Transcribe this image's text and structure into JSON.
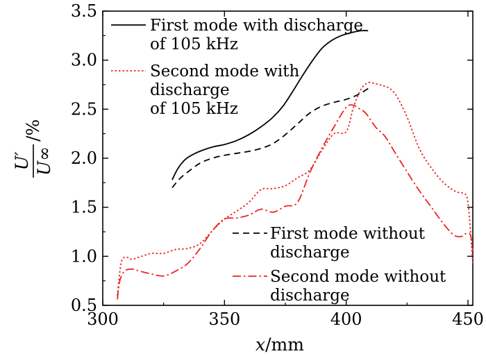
{
  "chart_data": {
    "type": "line",
    "xlabel": {
      "var": "x",
      "unit": "/mm"
    },
    "ylabel": {
      "numerator": "U′",
      "denominator": "U∞",
      "unit": "/%"
    },
    "xlim": [
      300,
      452
    ],
    "ylim": [
      0.5,
      3.5
    ],
    "x_ticks": [
      "300",
      "350",
      "400",
      "450"
    ],
    "y_ticks": [
      "0.5",
      "1.0",
      "1.5",
      "2.0",
      "2.5",
      "3.0",
      "3.5"
    ],
    "grid": false,
    "series": [
      {
        "name": "First mode with discharge of 105 kHz",
        "legend_lines": [
          "First mode with discharge",
          "of 105 kHz"
        ],
        "color": "#000000",
        "style": "solid",
        "x": [
          328.5,
          331,
          334,
          338,
          342,
          346,
          350,
          355,
          360,
          365,
          370,
          374,
          378,
          382,
          386,
          390,
          394,
          398,
          402,
          406,
          409
        ],
        "y": [
          1.78,
          1.9,
          1.99,
          2.05,
          2.09,
          2.12,
          2.14,
          2.18,
          2.24,
          2.32,
          2.42,
          2.53,
          2.68,
          2.84,
          2.99,
          3.12,
          3.2,
          3.25,
          3.28,
          3.3,
          3.3
        ]
      },
      {
        "name": "Second mode with discharge of 105 kHz",
        "legend_lines": [
          "Second mode with",
          "discharge",
          "of 105 kHz"
        ],
        "color": "#ee2222",
        "style": "dotted",
        "x": [
          306,
          307,
          308,
          310,
          312,
          316,
          320,
          325,
          330,
          335,
          340,
          345,
          350,
          355,
          360,
          365,
          370,
          375,
          380,
          385,
          390,
          395,
          400,
          403,
          406,
          409,
          412,
          415,
          418,
          421,
          425,
          430,
          435,
          440,
          445,
          448,
          450,
          452
        ],
        "y": [
          0.6,
          0.84,
          0.97,
          0.99,
          0.97,
          1.0,
          1.03,
          1.03,
          1.07,
          1.08,
          1.13,
          1.26,
          1.38,
          1.46,
          1.55,
          1.68,
          1.69,
          1.72,
          1.8,
          1.88,
          2.08,
          2.25,
          2.27,
          2.52,
          2.7,
          2.77,
          2.76,
          2.74,
          2.71,
          2.62,
          2.42,
          2.1,
          1.9,
          1.75,
          1.66,
          1.64,
          1.55,
          0.93
        ]
      },
      {
        "name": "First mode without discharge",
        "legend_lines": [
          "First mode without",
          "discharge"
        ],
        "color": "#000000",
        "style": "dashed",
        "x": [
          328.5,
          332,
          336,
          340,
          345,
          350,
          355,
          360,
          365,
          370,
          375,
          380,
          385,
          390,
          395,
          400,
          405,
          409
        ],
        "y": [
          1.7,
          1.8,
          1.88,
          1.95,
          2.0,
          2.03,
          2.05,
          2.07,
          2.1,
          2.15,
          2.24,
          2.35,
          2.46,
          2.53,
          2.57,
          2.6,
          2.65,
          2.71
        ]
      },
      {
        "name": "Second mode without discharge",
        "legend_lines": [
          "Second mode without",
          "discharge"
        ],
        "color": "#ee2222",
        "style": "dashdot",
        "x": [
          306,
          307,
          309,
          312,
          315,
          320,
          325,
          330,
          335,
          340,
          345,
          350,
          355,
          360,
          365,
          370,
          375,
          380,
          385,
          390,
          395,
          400,
          403,
          405,
          408,
          412,
          416,
          420,
          425,
          430,
          435,
          440,
          444,
          447,
          449,
          451,
          452
        ],
        "y": [
          0.56,
          0.75,
          0.85,
          0.87,
          0.85,
          0.82,
          0.8,
          0.85,
          0.93,
          1.08,
          1.26,
          1.38,
          1.39,
          1.42,
          1.48,
          1.45,
          1.51,
          1.55,
          1.85,
          2.1,
          2.32,
          2.52,
          2.54,
          2.51,
          2.46,
          2.32,
          2.22,
          2.06,
          1.86,
          1.67,
          1.5,
          1.33,
          1.22,
          1.2,
          1.23,
          1.22,
          1.05
        ]
      }
    ]
  }
}
